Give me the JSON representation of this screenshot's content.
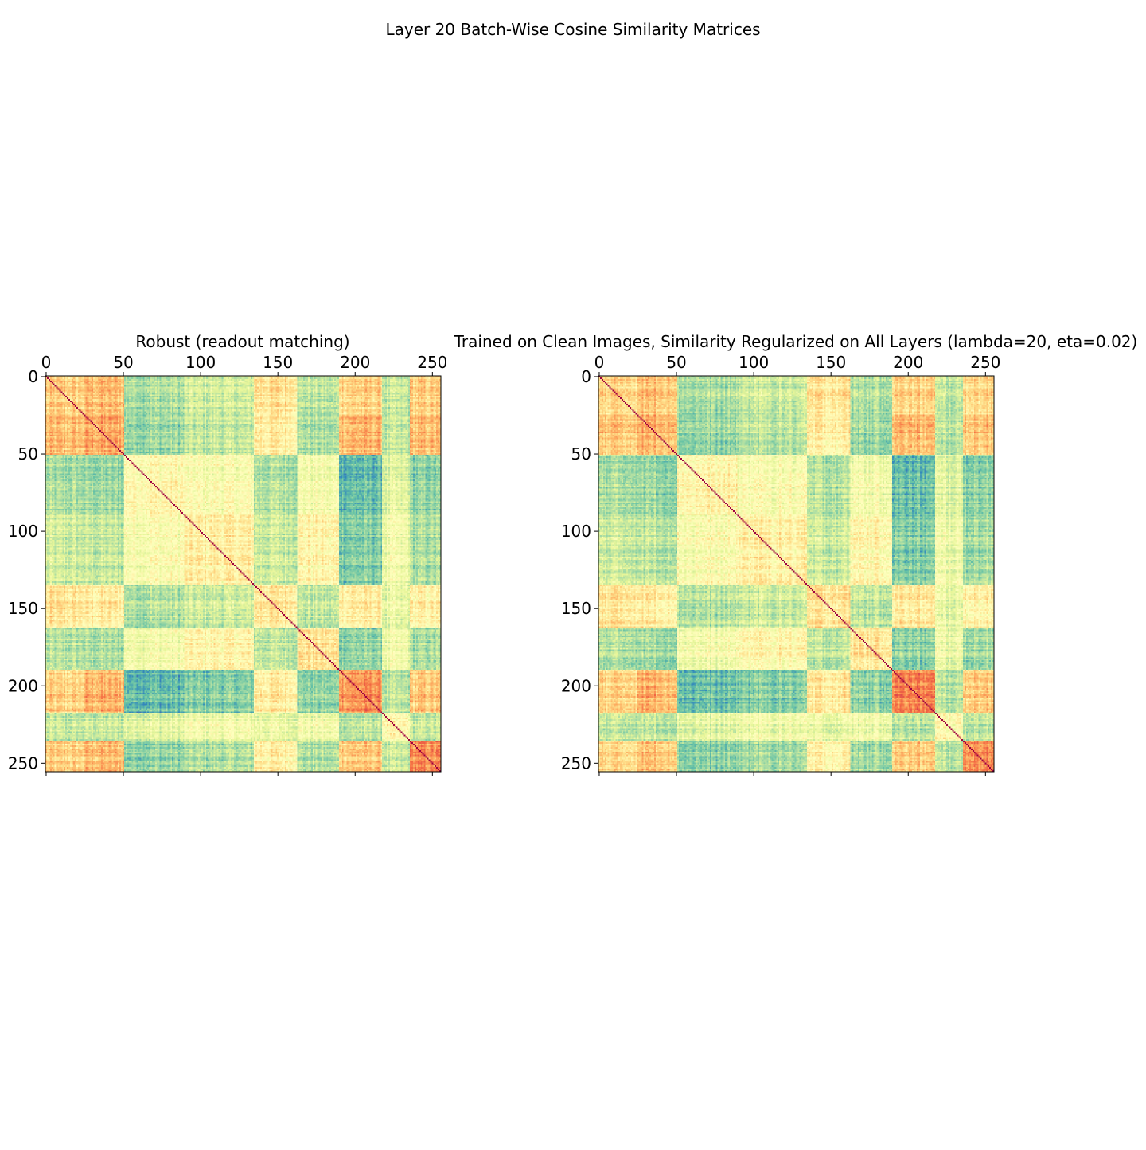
{
  "figure": {
    "suptitle": "Layer 20 Batch-Wise Cosine Similarity Matrices"
  },
  "chart_data": [
    {
      "type": "heatmap",
      "title": "Robust (readout matching)",
      "xlabel": "",
      "ylabel": "",
      "n": 256,
      "xlim": [
        0,
        256
      ],
      "ylim": [
        256,
        0
      ],
      "x_ticks": [
        0,
        50,
        100,
        150,
        200,
        250
      ],
      "y_ticks": [
        0,
        50,
        100,
        150,
        200,
        250
      ],
      "x_axis_position": "top",
      "colormap": "Spectral_r",
      "diagonal_value": 1.0,
      "block_boundaries": [
        0,
        25,
        51,
        90,
        135,
        163,
        190,
        218,
        236,
        256
      ],
      "block_similarity_matrix": [
        [
          0.62,
          0.66,
          0.3,
          0.36,
          0.58,
          0.32,
          0.62,
          0.34,
          0.62
        ],
        [
          0.66,
          0.7,
          0.28,
          0.34,
          0.56,
          0.3,
          0.68,
          0.34,
          0.66
        ],
        [
          0.3,
          0.28,
          0.52,
          0.48,
          0.32,
          0.46,
          0.2,
          0.4,
          0.26
        ],
        [
          0.36,
          0.34,
          0.48,
          0.54,
          0.36,
          0.52,
          0.24,
          0.44,
          0.3
        ],
        [
          0.58,
          0.56,
          0.32,
          0.36,
          0.58,
          0.34,
          0.56,
          0.42,
          0.54
        ],
        [
          0.32,
          0.3,
          0.46,
          0.52,
          0.34,
          0.58,
          0.26,
          0.44,
          0.3
        ],
        [
          0.62,
          0.68,
          0.2,
          0.24,
          0.56,
          0.26,
          0.74,
          0.32,
          0.64
        ],
        [
          0.34,
          0.34,
          0.4,
          0.44,
          0.42,
          0.44,
          0.32,
          0.5,
          0.34
        ],
        [
          0.62,
          0.66,
          0.26,
          0.3,
          0.54,
          0.3,
          0.64,
          0.34,
          0.74
        ]
      ]
    },
    {
      "type": "heatmap",
      "title": "Trained on Clean Images, Similarity Regularized on All Layers (lambda=20, eta=0.02)",
      "xlabel": "",
      "ylabel": "",
      "n": 256,
      "xlim": [
        0,
        256
      ],
      "ylim": [
        256,
        0
      ],
      "x_ticks": [
        0,
        50,
        100,
        150,
        200,
        250
      ],
      "y_ticks": [
        0,
        50,
        100,
        150,
        200,
        250
      ],
      "x_axis_position": "top",
      "colormap": "Spectral_r",
      "diagonal_value": 1.0,
      "block_boundaries": [
        0,
        25,
        51,
        90,
        135,
        163,
        190,
        218,
        236,
        256
      ],
      "block_similarity_matrix": [
        [
          0.62,
          0.66,
          0.3,
          0.36,
          0.58,
          0.32,
          0.62,
          0.34,
          0.62
        ],
        [
          0.66,
          0.7,
          0.28,
          0.34,
          0.56,
          0.3,
          0.68,
          0.34,
          0.66
        ],
        [
          0.3,
          0.28,
          0.52,
          0.48,
          0.32,
          0.46,
          0.2,
          0.4,
          0.26
        ],
        [
          0.36,
          0.34,
          0.48,
          0.54,
          0.36,
          0.52,
          0.24,
          0.44,
          0.3
        ],
        [
          0.58,
          0.56,
          0.32,
          0.36,
          0.58,
          0.34,
          0.56,
          0.42,
          0.54
        ],
        [
          0.32,
          0.3,
          0.46,
          0.52,
          0.34,
          0.58,
          0.26,
          0.44,
          0.3
        ],
        [
          0.62,
          0.68,
          0.2,
          0.24,
          0.56,
          0.26,
          0.76,
          0.32,
          0.64
        ],
        [
          0.34,
          0.34,
          0.4,
          0.44,
          0.42,
          0.44,
          0.32,
          0.5,
          0.34
        ],
        [
          0.62,
          0.66,
          0.26,
          0.3,
          0.54,
          0.3,
          0.64,
          0.34,
          0.76
        ]
      ]
    }
  ]
}
